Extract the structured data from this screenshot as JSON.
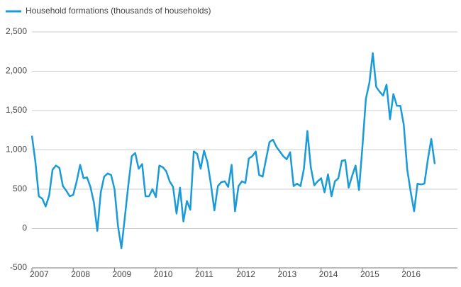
{
  "chart_data": {
    "type": "line",
    "legend_position": "top-left",
    "categories": [
      "2007",
      null,
      null,
      null,
      null,
      null,
      null,
      null,
      null,
      null,
      null,
      null,
      "2008",
      null,
      null,
      null,
      null,
      null,
      null,
      null,
      null,
      null,
      null,
      null,
      "2009",
      null,
      null,
      null,
      null,
      null,
      null,
      null,
      null,
      null,
      null,
      null,
      "2010",
      null,
      null,
      null,
      null,
      null,
      null,
      null,
      null,
      null,
      null,
      null,
      "2011",
      null,
      null,
      null,
      null,
      null,
      null,
      null,
      null,
      null,
      null,
      null,
      "2012",
      null,
      null,
      null,
      null,
      null,
      null,
      null,
      null,
      null,
      null,
      null,
      "2013",
      null,
      null,
      null,
      null,
      null,
      null,
      null,
      null,
      null,
      null,
      null,
      "2014",
      null,
      null,
      null,
      null,
      null,
      null,
      null,
      null,
      null,
      null,
      null,
      "2015",
      null,
      null,
      null,
      null,
      null,
      null,
      null,
      null,
      null,
      null,
      null,
      "2016",
      null,
      null,
      null,
      null,
      null,
      null,
      null,
      null,
      null
    ],
    "series": [
      {
        "name": "Household formations (thousands of households)",
        "color": "#1a9bd7",
        "values": [
          1180,
          850,
          410,
          380,
          280,
          420,
          750,
          800,
          770,
          540,
          480,
          410,
          430,
          600,
          810,
          640,
          650,
          530,
          330,
          -30,
          460,
          660,
          700,
          680,
          500,
          30,
          -250,
          150,
          550,
          920,
          960,
          760,
          820,
          410,
          410,
          500,
          400,
          800,
          780,
          730,
          600,
          530,
          190,
          520,
          90,
          350,
          240,
          980,
          950,
          760,
          990,
          840,
          560,
          230,
          540,
          590,
          600,
          530,
          810,
          220,
          540,
          600,
          580,
          890,
          920,
          980,
          680,
          660,
          880,
          1100,
          1130,
          1040,
          980,
          920,
          880,
          970,
          540,
          570,
          540,
          760,
          1240,
          780,
          550,
          600,
          640,
          460,
          690,
          410,
          600,
          640,
          860,
          870,
          520,
          670,
          800,
          490,
          1050,
          1650,
          1850,
          2230,
          1800,
          1740,
          1690,
          1830,
          1390,
          1710,
          1560,
          1560,
          1320,
          750,
          470,
          220,
          570,
          560,
          570,
          880,
          1140,
          820
        ]
      }
    ],
    "ylim": [
      -500,
      2500
    ],
    "yticks": [
      -500,
      0,
      500,
      {
        "value": 1000,
        "label": "1,000"
      },
      {
        "value": 1500,
        "label": "1,500"
      },
      {
        "value": 2000,
        "label": "2,000"
      },
      {
        "value": 2500,
        "label": "2,500"
      }
    ],
    "grid": true
  }
}
